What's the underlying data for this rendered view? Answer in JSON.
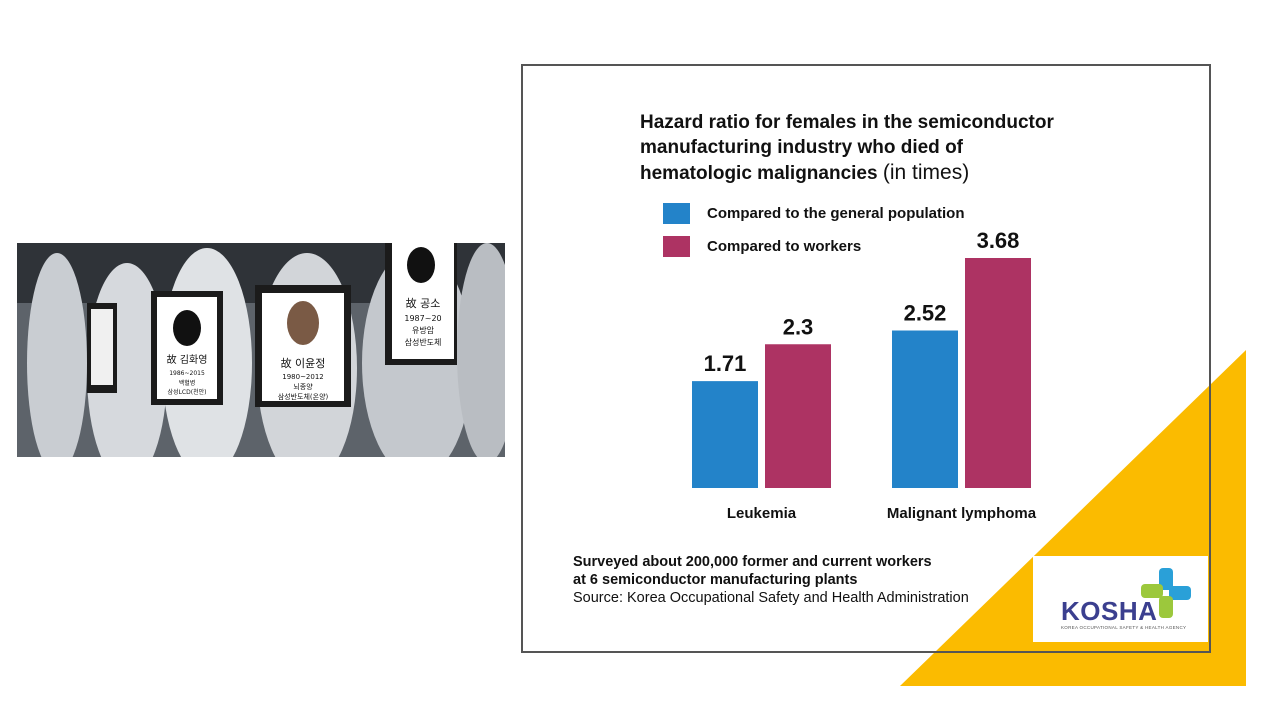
{
  "colors": {
    "series1": "#2383c9",
    "series2": "#ad3363",
    "accent_yellow": "#fbbb00"
  },
  "photo": {
    "icon": "protest-photo",
    "sign_texts": [
      "故 김화영",
      "1986~2015",
      "백혈병",
      "삼성LCD(천안)",
      "故 이윤정",
      "1980~2012",
      "뇌종양",
      "삼성반도체(온양)",
      "故 공소",
      "1987~20",
      "유방암",
      "삼성반도체"
    ]
  },
  "title": {
    "line1": "Hazard ratio for females in the semiconductor",
    "line2": "manufacturing industry who died of",
    "line3": "hematologic malignancies",
    "unit": "(in times)"
  },
  "chart_data": {
    "type": "bar",
    "title": "Hazard ratio for females in the semiconductor manufacturing industry who died of hematologic malignancies (in times)",
    "categories": [
      "Leukemia",
      "Malignant lymphoma"
    ],
    "series": [
      {
        "name": "Compared to the general population",
        "values": [
          1.71,
          2.52
        ]
      },
      {
        "name": "Compared to workers",
        "values": [
          2.3,
          3.68
        ]
      }
    ],
    "value_labels": [
      [
        "1.71",
        "2.52"
      ],
      [
        "2.3",
        "3.68"
      ]
    ],
    "ylim": [
      0,
      4
    ],
    "legend": "top-left",
    "grid": false
  },
  "note": {
    "line1": "Surveyed about 200,000 former and current workers",
    "line2": "at 6 semiconductor manufacturing plants",
    "source": "Source: Korea Occupational Safety and Health Administration"
  },
  "logo": {
    "name": "KOSHA",
    "subtitle": "KOREA OCCUPATIONAL SAFETY & HEALTH AGENCY",
    "icon": "kosha-cross-icon"
  }
}
